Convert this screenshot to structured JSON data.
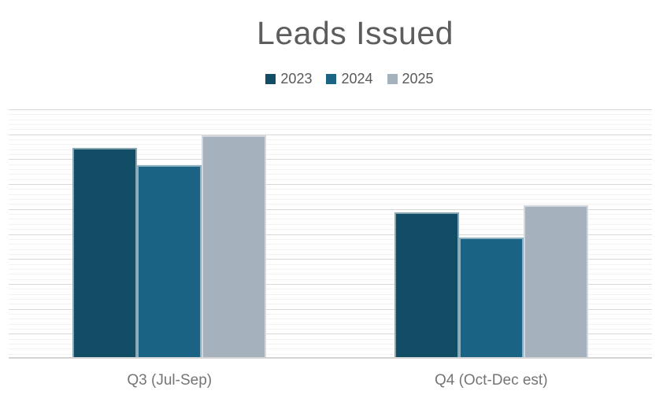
{
  "title": "Leads Issued",
  "chart_data": {
    "type": "bar",
    "title": "Leads Issued",
    "categories": [
      "Q3 (Jul-Sep)",
      "Q4 (Oct-Dec est)"
    ],
    "series": [
      {
        "name": "2023",
        "color": "#124d66",
        "values": [
          84,
          58
        ]
      },
      {
        "name": "2024",
        "color": "#1b6385",
        "values": [
          77,
          48
        ]
      },
      {
        "name": "2025",
        "color": "#a5b1bd",
        "values": [
          89,
          61
        ]
      }
    ],
    "ylim": [
      0,
      100
    ],
    "value_axis_labels_visible": false,
    "legend_position": "top",
    "gridlines": {
      "major_step": 10,
      "minor_divisions_per_major": 5,
      "major_color": "#d8d8d8",
      "minor_color": "#f2f2f2"
    },
    "axis_line_color": "#d4d4d4",
    "title_color": "#5d5d5d",
    "label_color": "#757575",
    "legend_text_color": "#595959",
    "background_color": "#ffffff"
  }
}
